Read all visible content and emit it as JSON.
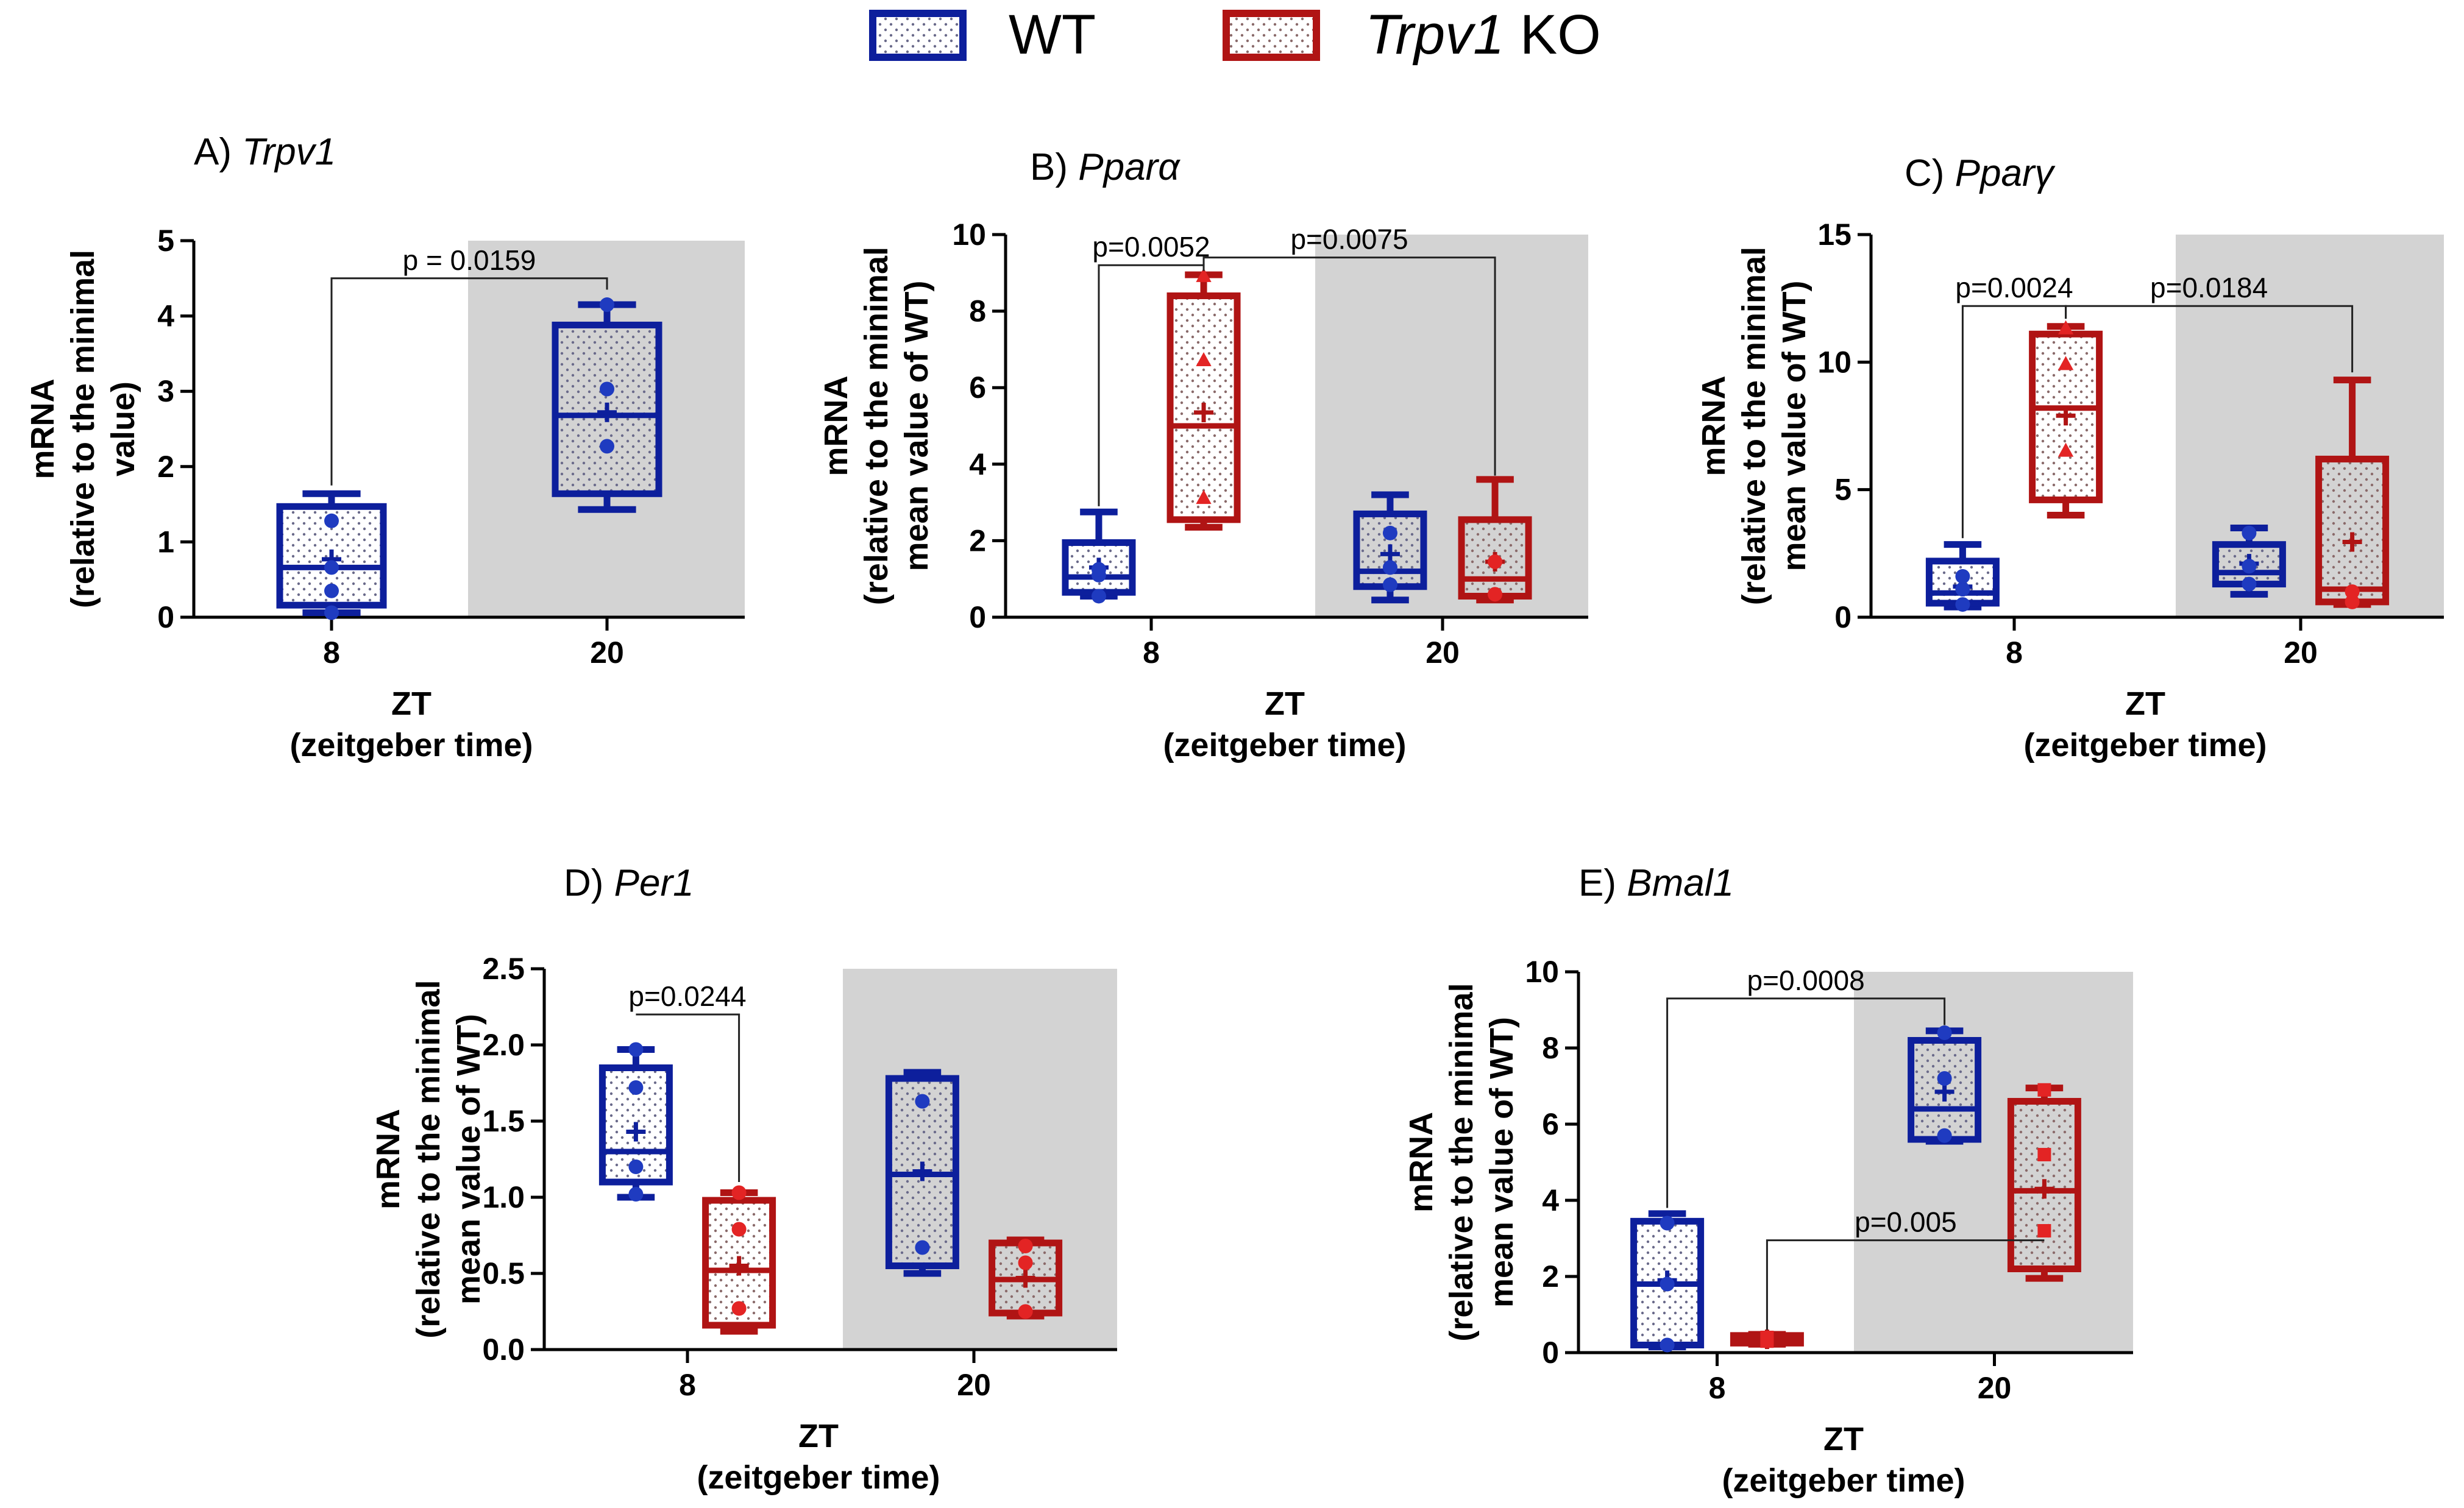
{
  "legend": {
    "wt_label": "WT",
    "ko_label_gene": "Trpv1",
    "ko_label_rest": " KO"
  },
  "colors": {
    "wt": "#0D1F9C",
    "wt_point": "#1F3BC0",
    "ko": "#B01414",
    "ko_point": "#E32424",
    "night_shade": "#D3D3D3",
    "axis": "#000000"
  },
  "chart_data": [
    {
      "id": "A",
      "type": "box",
      "title_prefix": "A) ",
      "title_gene": "Trpv1",
      "ylabel_lines": [
        "mRNA",
        "(relative to the minimal",
        "value)"
      ],
      "xlabel_lines": [
        "ZT",
        "(zeitgeber time)"
      ],
      "ylim": [
        0,
        5
      ],
      "yticks": [
        0,
        1,
        2,
        3,
        4,
        5
      ],
      "ytick_labels": [
        "0",
        "1",
        "2",
        "3",
        "4",
        "5"
      ],
      "xticks": [
        "8",
        "20"
      ],
      "shade_from": 1.5,
      "series": [
        {
          "group": "wt",
          "x": 1,
          "min": 0.06,
          "q1": 0.16,
          "median": 0.66,
          "q3": 1.47,
          "max": 1.64,
          "mean": 0.77,
          "points": [
            0.06,
            0.35,
            0.66,
            1.28
          ],
          "marker": "circle"
        },
        {
          "group": "wt",
          "x": 2,
          "min": 1.43,
          "q1": 1.64,
          "median": 2.68,
          "q3": 3.88,
          "max": 4.15,
          "mean": 2.72,
          "points": [
            2.27,
            3.03,
            4.15
          ],
          "marker": "circle"
        }
      ],
      "significance": [
        {
          "label": "p = 0.0159",
          "x1": 1,
          "x2": 2,
          "y": 4.5,
          "drop1": 1.75,
          "drop2": 4.35
        }
      ]
    },
    {
      "id": "B",
      "type": "box",
      "title_prefix": "B) ",
      "title_gene": "Pparα",
      "ylabel_lines": [
        "mRNA",
        "(relative to the minimal",
        "mean value of WT)"
      ],
      "xlabel_lines": [
        "ZT",
        "(zeitgeber time)"
      ],
      "ylim": [
        0,
        10
      ],
      "yticks": [
        0,
        2,
        4,
        6,
        8,
        10
      ],
      "ytick_labels": [
        "0",
        "2",
        "4",
        "6",
        "8",
        "10"
      ],
      "xticks": [
        "8",
        "20"
      ],
      "shade_from": 1.5,
      "series": [
        {
          "group": "wt",
          "x": 0.82,
          "min": 0.55,
          "q1": 0.65,
          "median": 1.05,
          "q3": 1.95,
          "max": 2.75,
          "mean": 1.3,
          "points": [
            0.55,
            1.1,
            1.25
          ],
          "marker": "circle"
        },
        {
          "group": "ko",
          "x": 1.18,
          "min": 2.35,
          "q1": 2.55,
          "median": 5.0,
          "q3": 8.4,
          "max": 8.95,
          "mean": 5.35,
          "points": [
            3.1,
            6.7,
            8.9
          ],
          "marker": "triangle"
        },
        {
          "group": "wt",
          "x": 1.82,
          "min": 0.45,
          "q1": 0.8,
          "median": 1.2,
          "q3": 2.7,
          "max": 3.2,
          "mean": 1.65,
          "points": [
            0.85,
            1.3,
            2.2
          ],
          "marker": "circle"
        },
        {
          "group": "ko",
          "x": 2.18,
          "min": 0.45,
          "q1": 0.55,
          "median": 1.0,
          "q3": 2.55,
          "max": 3.6,
          "mean": 1.45,
          "points": [
            0.6,
            1.45
          ],
          "marker": "circle"
        }
      ],
      "significance": [
        {
          "label": "p=0.0052",
          "x1": 0.82,
          "x2": 1.18,
          "y": 9.2,
          "drop1": 2.9,
          "drop2": 9.05
        },
        {
          "label": "p=0.0075",
          "x1": 1.18,
          "x2": 2.18,
          "y": 9.4,
          "drop1": 9.2,
          "drop2": 3.7
        }
      ]
    },
    {
      "id": "C",
      "type": "box",
      "title_prefix": "C) ",
      "title_gene": "Pparγ",
      "ylabel_lines": [
        "mRNA",
        "(relative to the minimal",
        "mean value of WT)"
      ],
      "xlabel_lines": [
        "ZT",
        "(zeitgeber time)"
      ],
      "ylim": [
        0,
        15
      ],
      "yticks": [
        0,
        5,
        10,
        15
      ],
      "ytick_labels": [
        "0",
        "5",
        "10",
        "15"
      ],
      "xticks": [
        "8",
        "20"
      ],
      "shade_from": 1.5,
      "series": [
        {
          "group": "wt",
          "x": 0.82,
          "min": 0.4,
          "q1": 0.55,
          "median": 0.95,
          "q3": 2.2,
          "max": 2.85,
          "mean": 1.2,
          "points": [
            0.5,
            1.1,
            1.6
          ],
          "marker": "circle"
        },
        {
          "group": "ko",
          "x": 1.18,
          "min": 4.0,
          "q1": 4.6,
          "median": 8.2,
          "q3": 11.1,
          "max": 11.4,
          "mean": 7.9,
          "points": [
            6.5,
            9.9,
            11.3
          ],
          "marker": "triangle"
        },
        {
          "group": "wt",
          "x": 1.82,
          "min": 0.9,
          "q1": 1.3,
          "median": 1.75,
          "q3": 2.85,
          "max": 3.5,
          "mean": 2.1,
          "points": [
            1.3,
            2.0,
            3.3
          ],
          "marker": "circle"
        },
        {
          "group": "ko",
          "x": 2.18,
          "min": 0.5,
          "q1": 0.6,
          "median": 1.1,
          "q3": 6.2,
          "max": 9.3,
          "mean": 2.95,
          "points": [
            0.6,
            1.0
          ],
          "marker": "circle"
        }
      ],
      "significance": [
        {
          "label": "p=0.0024",
          "x1": 0.82,
          "x2": 1.18,
          "y": 12.2,
          "drop1": 3.1,
          "drop2": 11.7
        },
        {
          "label": "p=0.0184",
          "x1": 1.18,
          "x2": 2.18,
          "y": 12.2,
          "drop1": 11.7,
          "drop2": 9.6
        }
      ]
    },
    {
      "id": "D",
      "type": "box",
      "title_prefix": "D) ",
      "title_gene": "Per1",
      "ylabel_lines": [
        "mRNA",
        "(relative to the minimal",
        "mean value of WT)"
      ],
      "xlabel_lines": [
        "ZT",
        "(zeitgeber time)"
      ],
      "ylim": [
        0,
        2.5
      ],
      "yticks": [
        0,
        0.5,
        1.0,
        1.5,
        2.0,
        2.5
      ],
      "ytick_labels": [
        "0.0",
        "0.5",
        "1.0",
        "1.5",
        "2.0",
        "2.5"
      ],
      "xticks": [
        "8",
        "20"
      ],
      "shade_from": 1.5,
      "series": [
        {
          "group": "wt",
          "x": 0.82,
          "min": 1.0,
          "q1": 1.1,
          "median": 1.3,
          "q3": 1.85,
          "max": 1.97,
          "mean": 1.43,
          "points": [
            1.02,
            1.2,
            1.72,
            1.97
          ],
          "marker": "circle"
        },
        {
          "group": "ko",
          "x": 1.18,
          "min": 0.12,
          "q1": 0.16,
          "median": 0.52,
          "q3": 0.98,
          "max": 1.03,
          "mean": 0.55,
          "points": [
            0.27,
            0.79,
            1.03
          ],
          "marker": "circle"
        },
        {
          "group": "wt",
          "x": 1.82,
          "min": 0.5,
          "q1": 0.55,
          "median": 1.15,
          "q3": 1.78,
          "max": 1.82,
          "mean": 1.17,
          "points": [
            0.67,
            1.63
          ],
          "marker": "circle"
        },
        {
          "group": "ko",
          "x": 2.18,
          "min": 0.22,
          "q1": 0.24,
          "median": 0.46,
          "q3": 0.7,
          "max": 0.72,
          "mean": 0.47,
          "points": [
            0.25,
            0.57,
            0.68
          ],
          "marker": "circle"
        }
      ],
      "significance": [
        {
          "label": "p=0.0244",
          "x1": 0.82,
          "x2": 1.18,
          "y": 2.2,
          "drop1": 2.2,
          "drop2": 1.1
        }
      ]
    },
    {
      "id": "E",
      "type": "box",
      "title_prefix": "E) ",
      "title_gene": "Bmal1",
      "ylabel_lines": [
        "mRNA",
        "(relative to the minimal",
        "mean value of WT)"
      ],
      "xlabel_lines": [
        "ZT",
        "(zeitgeber time)"
      ],
      "ylim": [
        0,
        10
      ],
      "yticks": [
        0,
        2,
        4,
        6,
        8,
        10
      ],
      "ytick_labels": [
        "0",
        "2",
        "4",
        "6",
        "8",
        "10"
      ],
      "xticks": [
        "8",
        "20"
      ],
      "shade_from": 1.5,
      "series": [
        {
          "group": "wt",
          "x": 0.82,
          "min": 0.15,
          "q1": 0.2,
          "median": 1.8,
          "q3": 3.45,
          "max": 3.65,
          "mean": 1.9,
          "points": [
            0.2,
            1.8,
            3.4
          ],
          "marker": "circle"
        },
        {
          "group": "ko",
          "x": 1.18,
          "min": 0.22,
          "q1": 0.25,
          "median": 0.35,
          "q3": 0.45,
          "max": 0.48,
          "mean": 0.35,
          "points": [
            0.3,
            0.4
          ],
          "marker": "square"
        },
        {
          "group": "wt",
          "x": 1.82,
          "min": 5.55,
          "q1": 5.6,
          "median": 6.4,
          "q3": 8.2,
          "max": 8.45,
          "mean": 6.85,
          "points": [
            5.7,
            7.2,
            8.4
          ],
          "marker": "circle"
        },
        {
          "group": "ko",
          "x": 2.18,
          "min": 1.95,
          "q1": 2.2,
          "median": 4.25,
          "q3": 6.6,
          "max": 6.95,
          "mean": 4.3,
          "points": [
            3.2,
            5.2,
            6.9
          ],
          "marker": "square"
        }
      ],
      "significance": [
        {
          "label": "p=0.0008",
          "x1": 0.82,
          "x2": 1.82,
          "y": 9.3,
          "drop1": 3.8,
          "drop2": 8.6
        },
        {
          "label": "p=0.005",
          "x1": 1.18,
          "x2": 2.18,
          "y": 2.95,
          "drop1": 0.6,
          "drop2": 2.95
        }
      ]
    }
  ]
}
